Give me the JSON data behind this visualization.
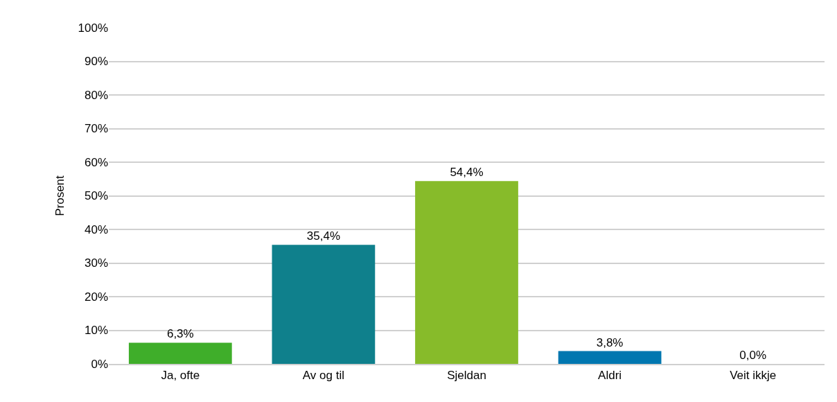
{
  "chart_data": {
    "type": "bar",
    "ylabel": "Prosent",
    "categories": [
      "Ja, ofte",
      "Av og til",
      "Sjeldan",
      "Aldri",
      "Veit ikkje"
    ],
    "values": [
      6.3,
      35.4,
      54.4,
      3.8,
      0.0
    ],
    "value_labels": [
      "6,3%",
      "35,4%",
      "54,4%",
      "3,8%",
      "0,0%"
    ],
    "colors": [
      "#3fae2a",
      "#0f808c",
      "#87bb2a",
      "#0077b0",
      "#a0a0a0"
    ],
    "ylim": [
      0,
      100
    ],
    "yticks": [
      {
        "value": 0,
        "label": "0%"
      },
      {
        "value": 10,
        "label": "10%"
      },
      {
        "value": 20,
        "label": "20%"
      },
      {
        "value": 30,
        "label": "30%"
      },
      {
        "value": 40,
        "label": "40%"
      },
      {
        "value": 50,
        "label": "50%"
      },
      {
        "value": 60,
        "label": "60%"
      },
      {
        "value": 70,
        "label": "70%"
      },
      {
        "value": 80,
        "label": "80%"
      },
      {
        "value": 90,
        "label": "90%"
      },
      {
        "value": 100,
        "label": "100%"
      }
    ],
    "grid": "y",
    "legend": false
  }
}
